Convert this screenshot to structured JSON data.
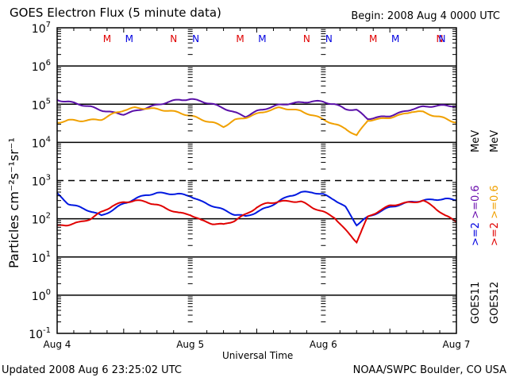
{
  "chart_data": {
    "type": "line",
    "title": "GOES Electron Flux (5 minute data)",
    "begin_label": "Begin: 2008 Aug 4 0000 UTC",
    "xlabel": "Universal Time",
    "ylabel": "Particles cm⁻²s⁻¹sr⁻¹",
    "yscale": "log",
    "ylim": [
      0.1,
      10000000
    ],
    "y_ticks": [
      {
        "base": "10",
        "exp": "7"
      },
      {
        "base": "10",
        "exp": "6"
      },
      {
        "base": "10",
        "exp": "5"
      },
      {
        "base": "10",
        "exp": "4"
      },
      {
        "base": "10",
        "exp": "3"
      },
      {
        "base": "10",
        "exp": "2"
      },
      {
        "base": "10",
        "exp": "1"
      },
      {
        "base": "10",
        "exp": "0"
      },
      {
        "base": "10",
        "exp": "-1"
      }
    ],
    "x_unit": "hours since 2008 Aug 4 0000 UTC",
    "xlim": [
      0,
      72
    ],
    "x_ticks": [
      "Aug 4",
      "Aug 5",
      "Aug 6",
      "Aug 7"
    ],
    "grid": true,
    "noon_midnight_markers": [
      {
        "label": "M",
        "hour": 9,
        "color": "#e00000"
      },
      {
        "label": "M",
        "hour": 13,
        "color": "#0000e0"
      },
      {
        "label": "N",
        "hour": 21,
        "color": "#e00000"
      },
      {
        "label": "N",
        "hour": 25,
        "color": "#0000e0"
      },
      {
        "label": "M",
        "hour": 33,
        "color": "#e00000"
      },
      {
        "label": "M",
        "hour": 37,
        "color": "#0000e0"
      },
      {
        "label": "N",
        "hour": 45,
        "color": "#e00000"
      },
      {
        "label": "N",
        "hour": 49,
        "color": "#0000e0"
      },
      {
        "label": "M",
        "hour": 57,
        "color": "#e00000"
      },
      {
        "label": "M",
        "hour": 61,
        "color": "#0000e0"
      },
      {
        "label": "N",
        "hour": 69,
        "color": "#e00000"
      },
      {
        "label": "N",
        "hour": 73,
        "color": "#0000e0"
      }
    ],
    "legend_placement": "right",
    "legend": [
      {
        "satellite": "GOES11",
        "entries": [
          {
            "text": ">=2",
            "color": "#0000e0"
          },
          {
            "text": ">=0.6",
            "color": "#6a0dad"
          }
        ]
      },
      {
        "satellite": "GOES12",
        "entries": [
          {
            "text": ">=2",
            "color": "#e00000"
          },
          {
            "text": ">=0.6",
            "color": "#f0a000"
          }
        ]
      }
    ],
    "legend_unit": "MeV",
    "series": [
      {
        "name": "GOES11 >=0.6 MeV",
        "color": "#5a10a8",
        "x": [
          0,
          2,
          4,
          6,
          8,
          10,
          12,
          14,
          16,
          18,
          20,
          22,
          24,
          26,
          28,
          30,
          32,
          34,
          36,
          38,
          40,
          42,
          44,
          46,
          48,
          50,
          52,
          54,
          56,
          58,
          60,
          62,
          64,
          66,
          68,
          70,
          72
        ],
        "y": [
          130000,
          115000,
          100000,
          85000,
          70000,
          60000,
          55000,
          65000,
          80000,
          95000,
          115000,
          130000,
          135000,
          120000,
          100000,
          80000,
          60000,
          48000,
          65000,
          80000,
          95000,
          105000,
          110000,
          120000,
          115000,
          100000,
          75000,
          70000,
          42000,
          45000,
          50000,
          60000,
          75000,
          85000,
          90000,
          92000,
          90000
        ]
      },
      {
        "name": "GOES12 >=0.6 MeV",
        "color": "#f0a000",
        "x": [
          0,
          2,
          4,
          6,
          8,
          10,
          12,
          14,
          16,
          18,
          20,
          22,
          24,
          26,
          28,
          30,
          32,
          34,
          36,
          38,
          40,
          42,
          44,
          46,
          48,
          50,
          52,
          54,
          56,
          58,
          60,
          62,
          64,
          66,
          68,
          70,
          72
        ],
        "y": [
          33000,
          38000,
          37000,
          38000,
          40000,
          55000,
          70000,
          80000,
          78000,
          74000,
          68000,
          60000,
          50000,
          40000,
          33000,
          26000,
          38000,
          45000,
          55000,
          68000,
          80000,
          75000,
          65000,
          52000,
          40000,
          30000,
          23000,
          15000,
          38000,
          40000,
          45000,
          52000,
          65000,
          62000,
          50000,
          42000,
          33000
        ]
      },
      {
        "name": "GOES11 >=2 MeV",
        "color": "#0018e0",
        "x": [
          0,
          2,
          4,
          6,
          8,
          10,
          12,
          14,
          16,
          18,
          20,
          22,
          24,
          26,
          28,
          30,
          32,
          34,
          36,
          38,
          40,
          42,
          44,
          46,
          48,
          50,
          52,
          54,
          56,
          58,
          60,
          62,
          64,
          66,
          68,
          70,
          72
        ],
        "y": [
          450,
          250,
          200,
          160,
          120,
          170,
          250,
          330,
          420,
          470,
          460,
          440,
          400,
          280,
          220,
          170,
          130,
          115,
          150,
          200,
          290,
          400,
          490,
          500,
          430,
          320,
          200,
          70,
          110,
          150,
          200,
          240,
          280,
          300,
          320,
          330,
          310
        ]
      },
      {
        "name": "GOES12 >=2 MeV",
        "color": "#e00000",
        "x": [
          0,
          2,
          4,
          6,
          8,
          10,
          12,
          14,
          16,
          18,
          20,
          22,
          24,
          26,
          28,
          30,
          32,
          34,
          36,
          38,
          40,
          42,
          44,
          46,
          48,
          50,
          52,
          54,
          56,
          58,
          60,
          62,
          64,
          66,
          68,
          70,
          72
        ],
        "y": [
          65,
          70,
          80,
          100,
          150,
          220,
          270,
          300,
          280,
          230,
          180,
          140,
          130,
          90,
          75,
          70,
          90,
          130,
          200,
          260,
          280,
          290,
          280,
          200,
          150,
          110,
          50,
          25,
          110,
          160,
          220,
          250,
          270,
          300,
          200,
          120,
          85
        ]
      }
    ]
  },
  "footer": {
    "updated": "Updated 2008 Aug  6 23:25:02 UTC",
    "credit": "NOAA/SWPC Boulder, CO USA"
  }
}
